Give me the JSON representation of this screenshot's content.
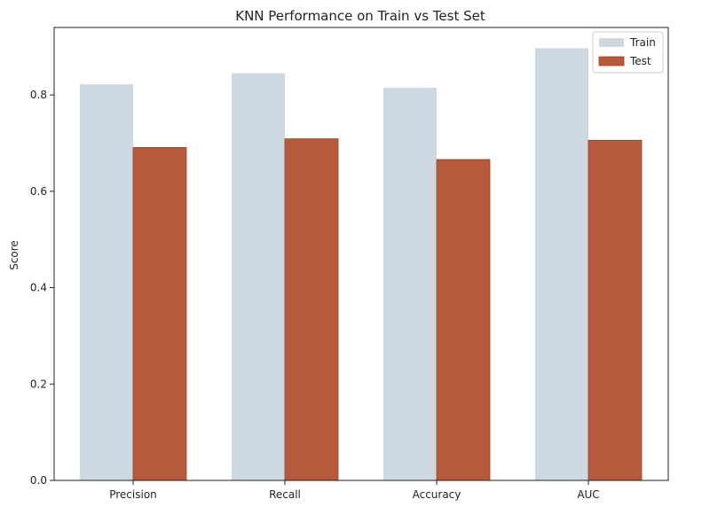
{
  "chart_data": {
    "type": "bar",
    "title": "KNN Performance on Train vs Test Set",
    "xlabel": "",
    "ylabel": "Score",
    "categories": [
      "Precision",
      "Recall",
      "Accuracy",
      "AUC"
    ],
    "series": [
      {
        "name": "Train",
        "values": [
          0.822,
          0.845,
          0.815,
          0.897
        ],
        "color": "#cdd8e0"
      },
      {
        "name": "Test",
        "values": [
          0.691,
          0.709,
          0.666,
          0.706
        ],
        "color": "#b55a3c"
      }
    ],
    "ylim": [
      0,
      0.94
    ],
    "yticks": [
      0.0,
      0.2,
      0.4,
      0.6,
      0.8
    ],
    "ytick_labels": [
      "0.0",
      "0.2",
      "0.4",
      "0.6",
      "0.8"
    ],
    "grid": false,
    "legend_position": "top-right"
  }
}
